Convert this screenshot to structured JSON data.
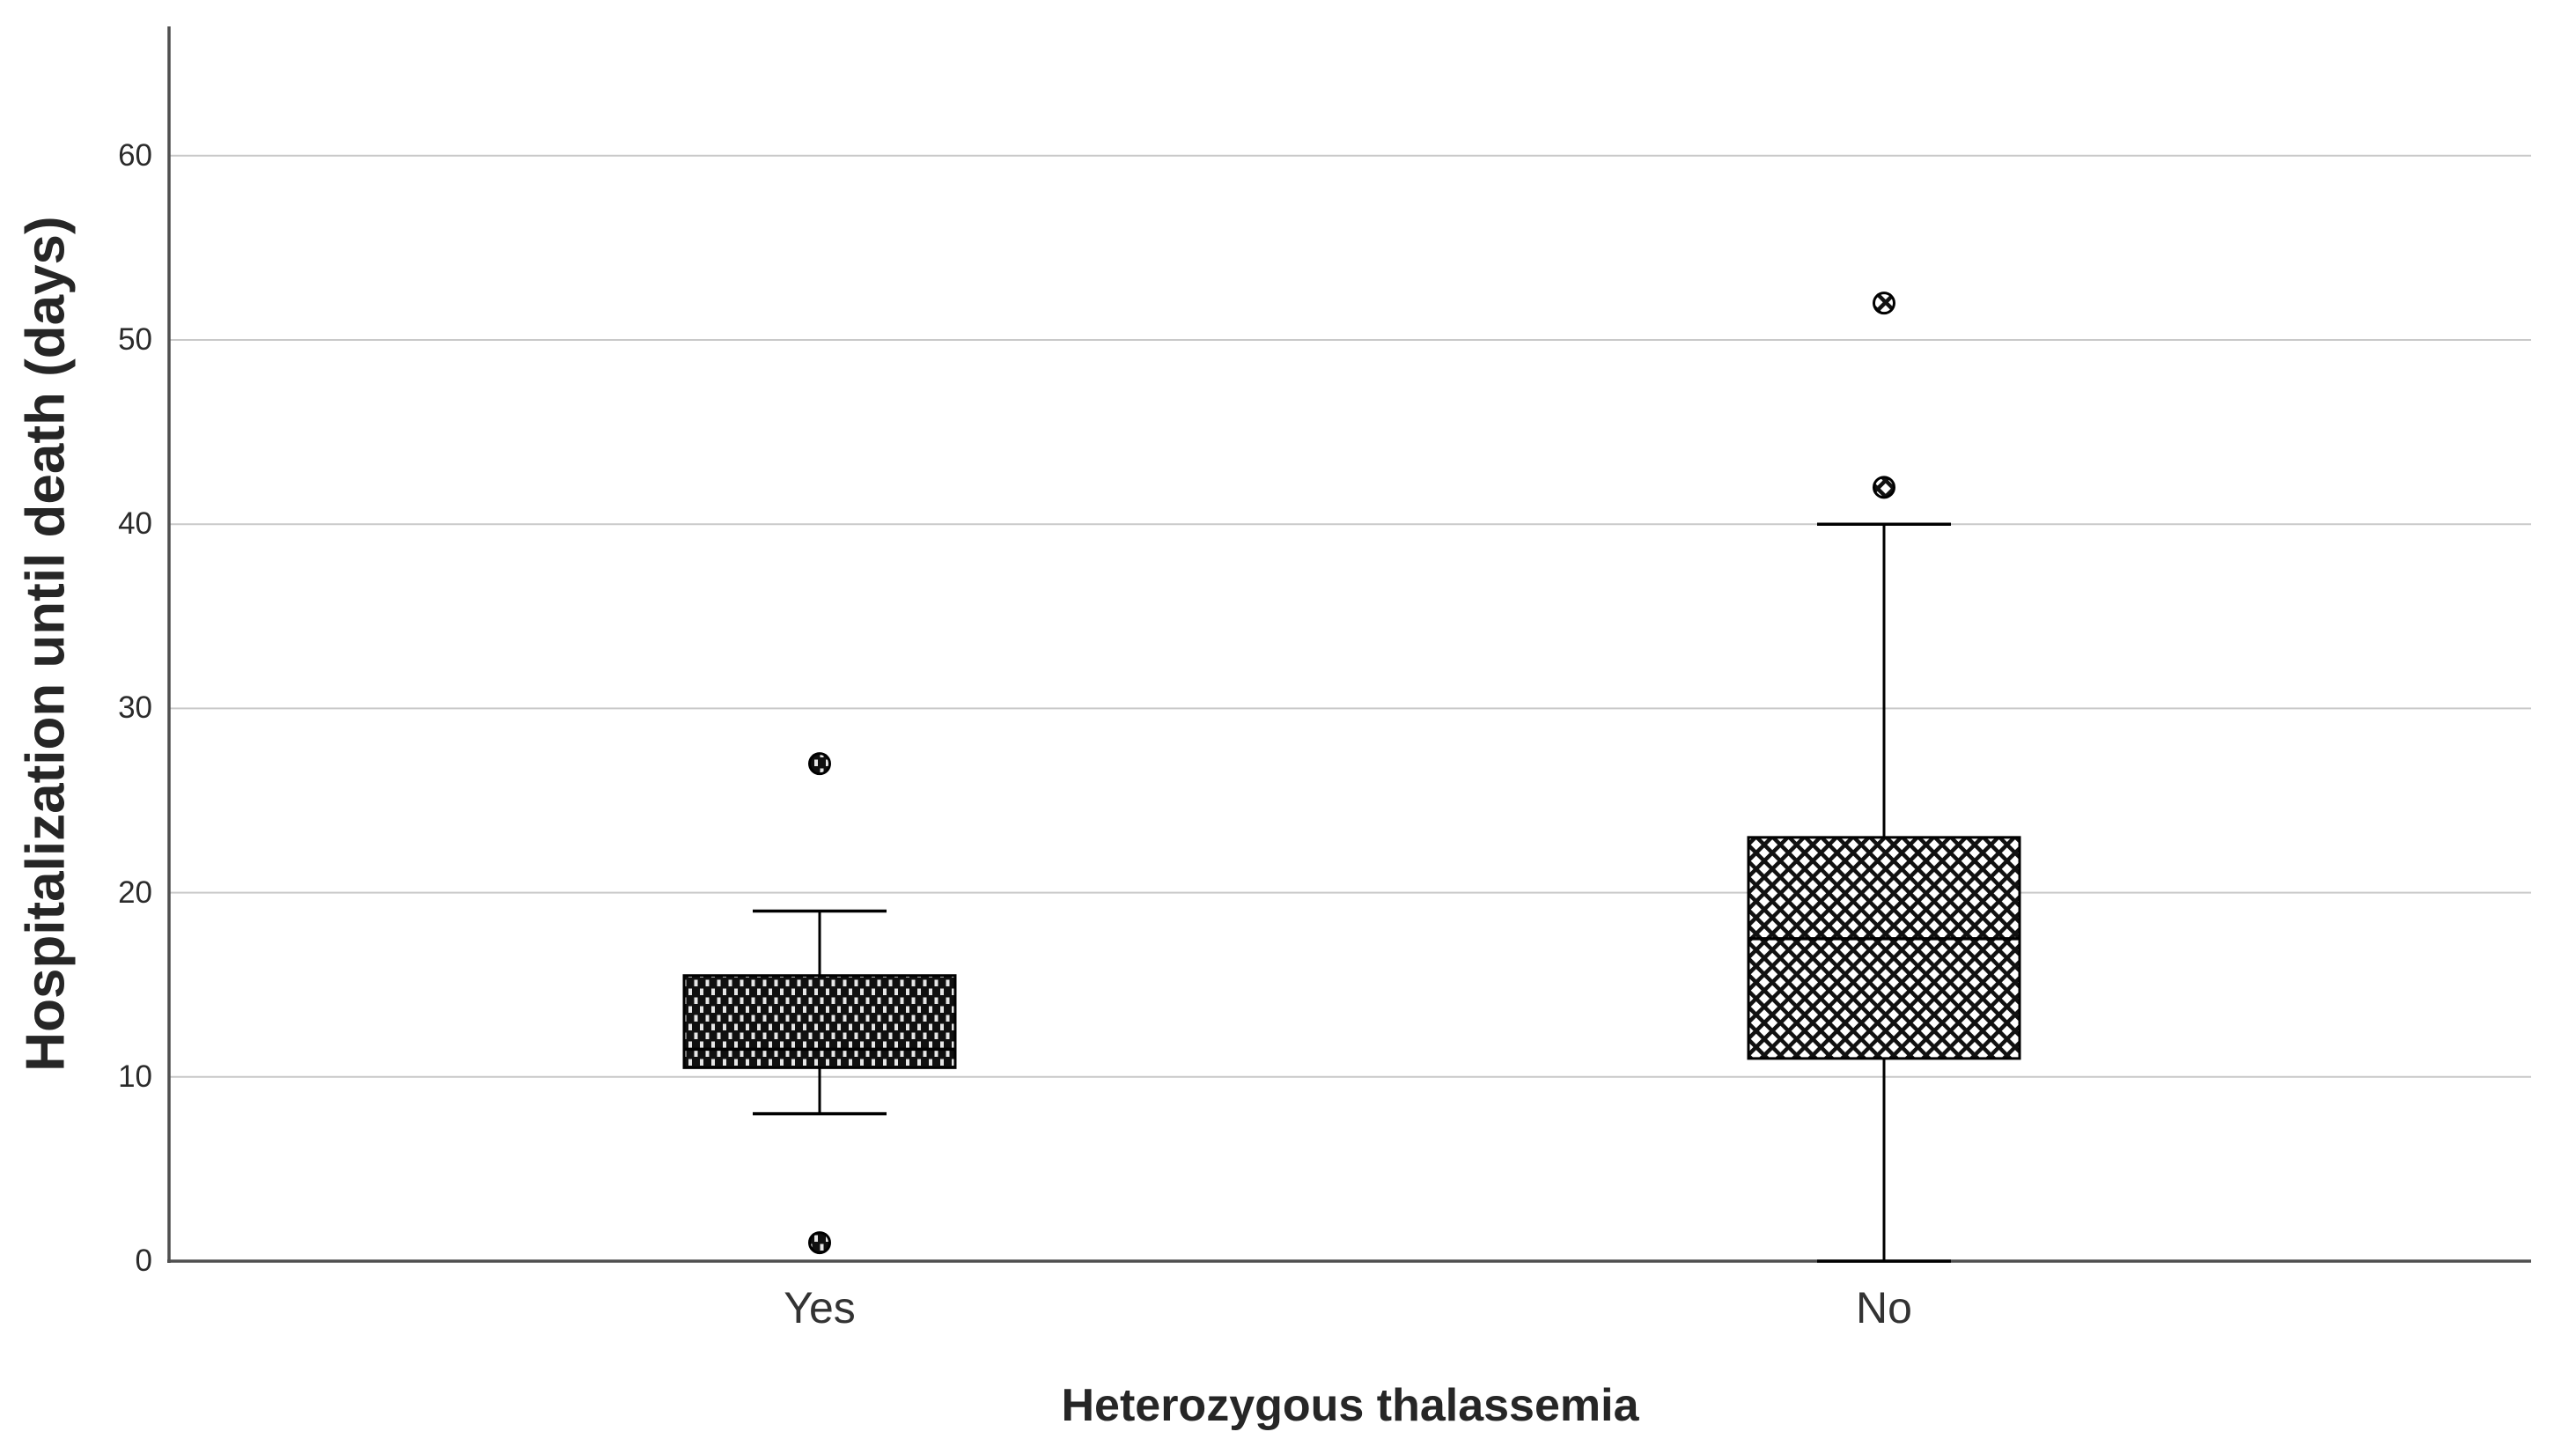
{
  "chart_data": {
    "type": "boxplot",
    "title": "",
    "xlabel": "Heterozygous thalassemia",
    "ylabel": "Hospitalization until death (days)",
    "categories": [
      "Yes",
      "No"
    ],
    "y_ticks": [
      0,
      10,
      20,
      30,
      40,
      50,
      60
    ],
    "ylim": [
      0,
      67
    ],
    "grid": "horizontal-gridlines-on",
    "legend": "none",
    "series": [
      {
        "category": "Yes",
        "q1": 10.5,
        "median": 11.5,
        "q3": 15.5,
        "whisker_low": 8,
        "whisker_high": 19,
        "outliers": [
          27,
          1
        ],
        "pattern": "dense-dark-dots"
      },
      {
        "category": "No",
        "q1": 11,
        "median": 17.5,
        "q3": 23,
        "whisker_low": 0,
        "whisker_high": 40,
        "outliers": [
          52,
          42
        ],
        "pattern": "diagonal-crosshatch"
      }
    ],
    "colors": {
      "axis_line": "#4f4f4f",
      "gridline": "#c9c9c9",
      "text": "#262626",
      "box_outline": "#000000",
      "pattern_dark_bg": "#101010",
      "pattern_dark_dot": "#e6e6e6",
      "pattern_hatch_line": "#111111",
      "pattern_hatch_bg": "#ffffff",
      "background": "#ffffff"
    }
  }
}
